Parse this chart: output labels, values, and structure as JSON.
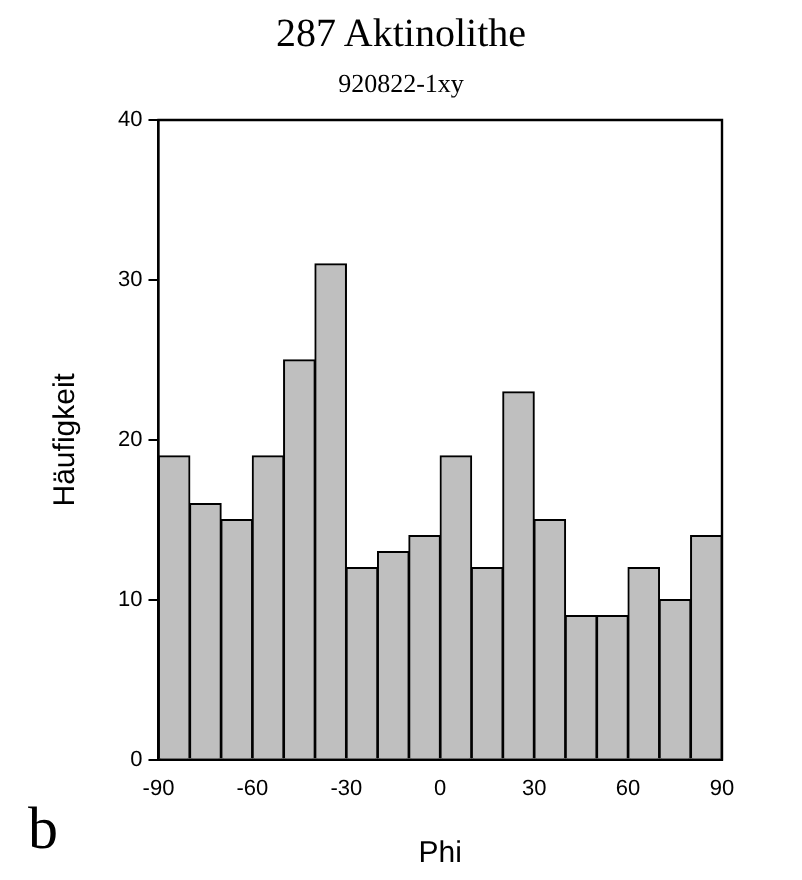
{
  "chart_data": {
    "type": "histogram",
    "title": "287 Aktinolithe",
    "subtitle": "920822-1xy",
    "xlabel": "Phi",
    "ylabel": "Häufigkeit",
    "bins": [
      -90,
      -80,
      -70,
      -60,
      -50,
      -40,
      -30,
      -20,
      -10,
      0,
      10,
      20,
      30,
      40,
      50,
      60,
      70,
      80,
      90
    ],
    "values": [
      19,
      16,
      15,
      19,
      25,
      31,
      12,
      13,
      14,
      19,
      12,
      23,
      15,
      9,
      9,
      12,
      10,
      14
    ],
    "color": "#bfbfbf",
    "xlim": [
      -90,
      90
    ],
    "xticks": [
      -90,
      -60,
      -30,
      0,
      30,
      60,
      90
    ],
    "ylim": [
      0,
      40
    ],
    "yticks": [
      0,
      10,
      20,
      30,
      40
    ],
    "grid": false,
    "legend": false,
    "annotations": [
      "b"
    ]
  }
}
